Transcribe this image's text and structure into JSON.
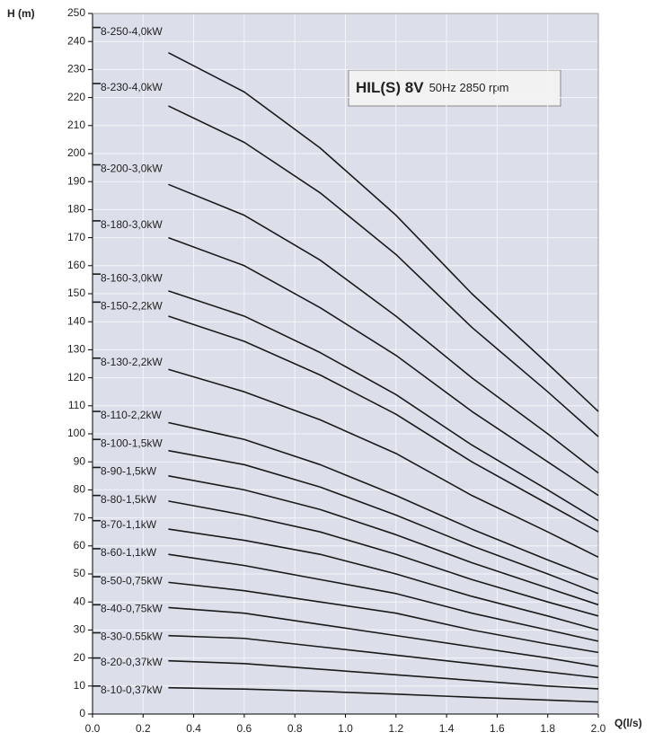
{
  "chart_data": {
    "type": "line",
    "title": "HIL(S) 8V",
    "subtitle": "50Hz 2850 rpm",
    "y_label": "H (m)",
    "x_label": "Q(l/s)",
    "x": [
      0,
      0.15,
      0.3,
      0.6,
      0.9,
      1.2,
      1.5,
      1.8,
      2.0
    ],
    "xlim": [
      0,
      2.0
    ],
    "ylim": [
      0,
      250
    ],
    "xticks": [
      {
        "value": 0,
        "label": "0.0"
      },
      {
        "value": 0.2,
        "label": "0.2"
      },
      {
        "value": 0.4,
        "label": "0.4"
      },
      {
        "value": 0.6,
        "label": "0.6"
      },
      {
        "value": 0.8,
        "label": "0.8"
      },
      {
        "value": 1.0,
        "label": "1.0"
      },
      {
        "value": 1.2,
        "label": "1.2"
      },
      {
        "value": 1.4,
        "label": "1.4"
      },
      {
        "value": 1.6,
        "label": "1.6"
      },
      {
        "value": 1.8,
        "label": "1.8"
      },
      {
        "value": 2.0,
        "label": "2.0"
      }
    ],
    "yticks": [
      0,
      10,
      20,
      30,
      40,
      50,
      60,
      70,
      80,
      90,
      100,
      110,
      120,
      130,
      140,
      150,
      160,
      170,
      180,
      190,
      200,
      210,
      220,
      230,
      240,
      250
    ],
    "grid": true,
    "color": "#1a1a1a",
    "series": [
      {
        "name": "8-250-4,0kW",
        "values": [
          245,
          null,
          236,
          222,
          202,
          178,
          150,
          125,
          108
        ]
      },
      {
        "name": "8-230-4,0kW",
        "values": [
          225,
          null,
          217,
          204,
          186,
          164,
          138,
          115,
          99
        ]
      },
      {
        "name": "8-200-3,0kW",
        "values": [
          196,
          null,
          189,
          178,
          162,
          142,
          120,
          100,
          86
        ]
      },
      {
        "name": "8-180-3,0kW",
        "values": [
          176,
          null,
          170,
          160,
          145,
          128,
          108,
          90,
          78
        ]
      },
      {
        "name": "8-160-3,0kW",
        "values": [
          157,
          null,
          151,
          142,
          129,
          114,
          96,
          80,
          69
        ]
      },
      {
        "name": "8-150-2,2kW",
        "values": [
          147,
          null,
          142,
          133,
          121,
          107,
          90,
          75,
          65
        ]
      },
      {
        "name": "8-130-2,2kW",
        "values": [
          127,
          null,
          123,
          115,
          105,
          93,
          78,
          65,
          56
        ]
      },
      {
        "name": "8-110-2,2kW",
        "values": [
          108,
          null,
          104,
          98,
          89,
          78,
          66,
          55,
          48
        ]
      },
      {
        "name": "8-100-1,5kW",
        "values": [
          98,
          null,
          94,
          89,
          81,
          71,
          60,
          50,
          43
        ]
      },
      {
        "name": "8-90-1,5kW",
        "values": [
          88,
          null,
          85,
          80,
          73,
          64,
          54,
          45,
          39
        ]
      },
      {
        "name": "8-80-1,5kW",
        "values": [
          78,
          null,
          76,
          71,
          65,
          57,
          48,
          40,
          35
        ]
      },
      {
        "name": "8-70-1,1kW",
        "values": [
          69,
          null,
          66,
          62,
          57,
          50,
          42,
          35,
          30
        ]
      },
      {
        "name": "8-60-1,1kW",
        "values": [
          59,
          null,
          57,
          53,
          48,
          43,
          36,
          30,
          26
        ]
      },
      {
        "name": "8-50-0,75kW",
        "values": [
          49,
          null,
          47,
          44,
          40,
          36,
          30,
          25,
          22
        ]
      },
      {
        "name": "8-40-0,75kW",
        "values": [
          39,
          null,
          38,
          36,
          32,
          28,
          24,
          20,
          17
        ]
      },
      {
        "name": "8-30-0.55kW",
        "values": [
          29,
          null,
          28,
          27,
          24,
          21,
          18,
          15,
          13
        ]
      },
      {
        "name": "8-20-0,37kW",
        "values": [
          20,
          null,
          19,
          18,
          16,
          14,
          12,
          10,
          9
        ]
      },
      {
        "name": "8-10-0,37kW",
        "values": [
          10,
          null,
          9.4,
          8.9,
          8.1,
          7.1,
          6,
          5,
          4.3
        ]
      }
    ]
  }
}
